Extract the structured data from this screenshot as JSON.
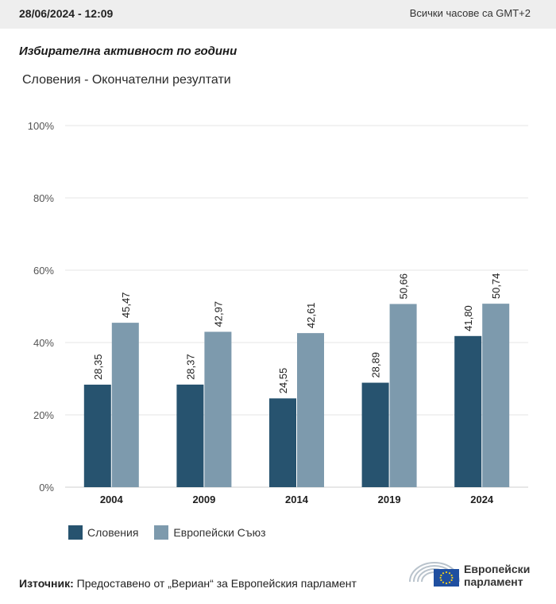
{
  "header": {
    "timestamp": "28/06/2024 - 12:09",
    "timezone": "Всички часове са GMT+2"
  },
  "title": "Избирателна активност по години",
  "subtitle": "Словения - Окончателни резултати",
  "colors": {
    "slovenia": "#27536f",
    "eu": "#7d9aad",
    "grid": "#e6e6e6"
  },
  "chart_data": {
    "type": "bar",
    "categories": [
      "2004",
      "2009",
      "2014",
      "2019",
      "2024"
    ],
    "series": [
      {
        "name": "Словения",
        "values": [
          28.35,
          28.37,
          24.55,
          28.89,
          41.8
        ],
        "labels": [
          "28,35",
          "28,37",
          "24,55",
          "28,89",
          "41,80"
        ]
      },
      {
        "name": "Европейски Съюз",
        "values": [
          45.47,
          42.97,
          42.61,
          50.66,
          50.74
        ],
        "labels": [
          "45,47",
          "42,97",
          "42,61",
          "50,66",
          "50,74"
        ]
      }
    ],
    "ylim": [
      0,
      100
    ],
    "yticks": [
      "0%",
      "20%",
      "40%",
      "60%",
      "80%",
      "100%"
    ],
    "grid": true,
    "legend": "bottom-left"
  },
  "legend": {
    "items": [
      "Словения",
      "Европейски Съюз"
    ]
  },
  "source": {
    "label": "Източник:",
    "text": "Предоставено от „Вериан“ за Европейския парламент"
  },
  "logo": {
    "line1": "Европейски",
    "line2": "парламент"
  }
}
